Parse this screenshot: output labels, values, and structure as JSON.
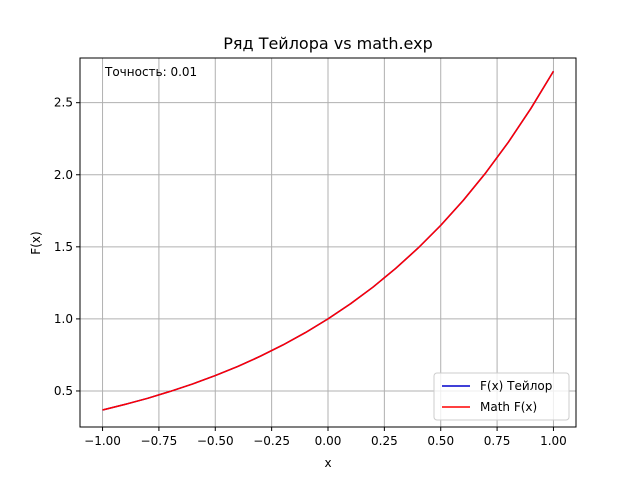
{
  "chart_data": {
    "type": "line",
    "title": "Ряд Тейлора vs math.exp",
    "xlabel": "x",
    "ylabel": "F(x)",
    "xlim": [
      -1.1,
      1.1
    ],
    "ylim": [
      0.25,
      2.81
    ],
    "xticks": [
      -1.0,
      -0.75,
      -0.5,
      -0.25,
      0.0,
      0.25,
      0.5,
      0.75,
      1.0
    ],
    "xtick_labels": [
      "−1.00",
      "−0.75",
      "−0.50",
      "−0.25",
      "0.00",
      "0.25",
      "0.50",
      "0.75",
      "1.00"
    ],
    "yticks": [
      0.5,
      1.0,
      1.5,
      2.0,
      2.5
    ],
    "ytick_labels": [
      "0.5",
      "1.0",
      "1.5",
      "2.0",
      "2.5"
    ],
    "grid": true,
    "legend_position": "lower-right",
    "annotation": "Точность: 0.01",
    "x": [
      -1.0,
      -0.9,
      -0.8,
      -0.7,
      -0.6,
      -0.5,
      -0.4,
      -0.3,
      -0.2,
      -0.1,
      0.0,
      0.1,
      0.2,
      0.3,
      0.4,
      0.5,
      0.6,
      0.7,
      0.8,
      0.9,
      1.0
    ],
    "series": [
      {
        "name": "F(x) Тейлор",
        "color": "#0000cc",
        "values": [
          0.368,
          0.407,
          0.449,
          0.497,
          0.549,
          0.607,
          0.67,
          0.741,
          0.819,
          0.905,
          1.0,
          1.105,
          1.221,
          1.35,
          1.492,
          1.649,
          1.822,
          2.014,
          2.226,
          2.46,
          2.718
        ]
      },
      {
        "name": "Math F(x)",
        "color": "#ff0000",
        "values": [
          0.368,
          0.407,
          0.449,
          0.497,
          0.549,
          0.607,
          0.67,
          0.741,
          0.819,
          0.905,
          1.0,
          1.105,
          1.221,
          1.35,
          1.492,
          1.649,
          1.822,
          2.014,
          2.226,
          2.46,
          2.718
        ]
      }
    ]
  }
}
